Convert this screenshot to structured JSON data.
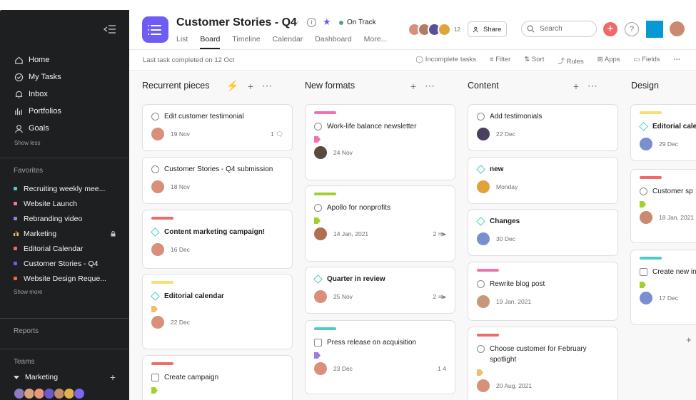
{
  "sidebar": {
    "nav": [
      {
        "label": "Home",
        "icon": "home-icon"
      },
      {
        "label": "My Tasks",
        "icon": "check-circle-icon"
      },
      {
        "label": "Inbox",
        "icon": "bell-icon"
      },
      {
        "label": "Portfolios",
        "icon": "bar-chart-icon"
      },
      {
        "label": "Goals",
        "icon": "person-icon"
      }
    ],
    "show_less": "Show less",
    "favorites_label": "Favorites",
    "favorites": [
      {
        "label": "Recruiting weekly mee...",
        "color": "#4ecbc4"
      },
      {
        "label": "Website Launch",
        "color": "#f26fb2"
      },
      {
        "label": "Rebranding video",
        "color": "#9e7ce0"
      },
      {
        "label": "Marketing",
        "color": "#f1bd6c"
      },
      {
        "label": "Editorial Calendar",
        "color": "#f06a6a"
      },
      {
        "label": "Customer Stories - Q4",
        "color": "#6d5df5"
      },
      {
        "label": "Website Design Reque...",
        "color": "#f06a3a"
      }
    ],
    "show_more": "Show more",
    "reports_label": "Reports",
    "teams_label": "Teams",
    "team_name": "Marketing"
  },
  "header": {
    "title": "Customer Stories - Q4",
    "status": "On Track",
    "tabs": [
      "List",
      "Board",
      "Timeline",
      "Calendar",
      "Dashboard",
      "More..."
    ],
    "active_tab": "Board",
    "member_count": "12",
    "share": "Share",
    "search_placeholder": "Search"
  },
  "toolbar": {
    "last_completed": "Last task completed on 12 Oct",
    "items": [
      "Incomplete tasks",
      "Filter",
      "Sort",
      "Rules",
      "Apps",
      "Fields"
    ]
  },
  "columns": [
    {
      "title": "Recurrent pieces",
      "cards": [
        {
          "title": "Edit customer testimonial",
          "date": "19 Nov",
          "right": "1"
        },
        {
          "title": "Customer Stories - Q4 submission",
          "date": "18 Nov"
        },
        {
          "title": "Content marketing campaign!",
          "date": "16 Dec",
          "strip": "#f06a6a"
        },
        {
          "title": "Editorial calendar",
          "date": "22 Dec",
          "strip": "#f8df72",
          "tag": "#f1bd6c"
        },
        {
          "title": "Create campaign",
          "strip": "#f06a6a"
        }
      ]
    },
    {
      "title": "New formats",
      "cards": [
        {
          "title": "Work-life balance newsletter",
          "date": "24 Nov",
          "strip": "#f26fb2",
          "tag": "#f26fb2"
        },
        {
          "title": "Apollo for nonprofits",
          "date": "14 Jan, 2021",
          "strip": "#a4cf30",
          "tag": "#a4cf30",
          "right": "2"
        },
        {
          "title": "Quarter in review",
          "date": "25 Nov",
          "right": "2"
        },
        {
          "title": "Press release on acquisition",
          "date": "23 Dec",
          "strip": "#4ecbc4",
          "tag": "#9e7ce0",
          "right": "1   4"
        }
      ]
    },
    {
      "title": "Content",
      "cards": [
        {
          "title": "Add testimonials",
          "date": "22 Dec"
        },
        {
          "title": "new",
          "date": "Monday"
        },
        {
          "title": "Changes",
          "date": "30 Dec"
        },
        {
          "title": "Rewrite blog post",
          "date": "19 Jan, 2021",
          "strip": "#f26fb2"
        },
        {
          "title": "Choose customer for February spotlight",
          "date": "20 Aug, 2021",
          "strip": "#f06a6a",
          "tag": "#f1bd6c"
        }
      ]
    },
    {
      "title": "Design",
      "cards": [
        {
          "title": "Editorial cale",
          "date": "29 Dec",
          "strip": "#f8df72"
        },
        {
          "title": "Customer sp",
          "date": "18 Jan, 2021",
          "strip": "#f06a6a",
          "tag": "#a4cf30"
        },
        {
          "title": "Create new in",
          "date": "17 Dec",
          "strip": "#4ecbc4",
          "tag": "#a4cf30"
        }
      ]
    }
  ]
}
